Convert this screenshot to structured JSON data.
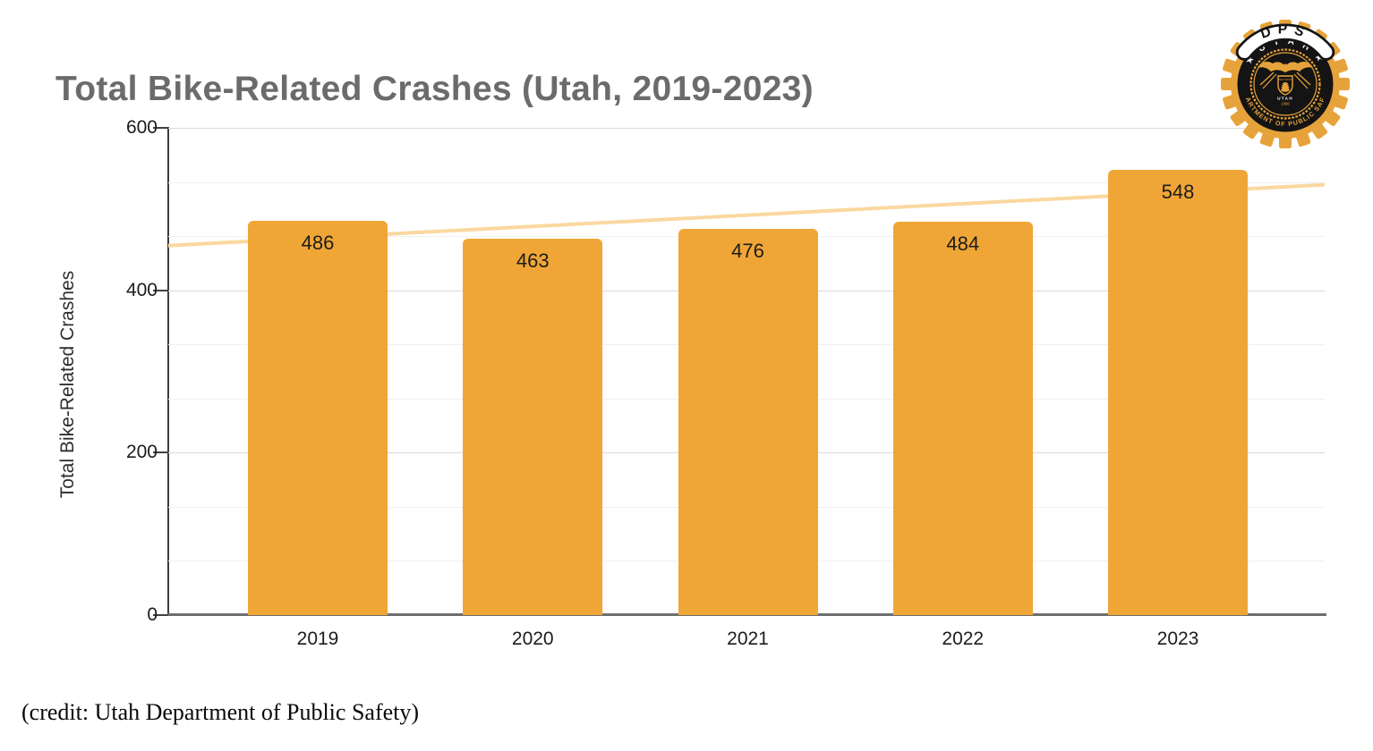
{
  "title": "Total Bike-Related Crashes (Utah, 2019-2023)",
  "credit": "(credit: Utah Department of Public Safety)",
  "logo": {
    "banner": "DPS",
    "arc_top": "★ U T A H ★",
    "ring_bottom": "DEPARTMENT OF PUBLIC SAFETY",
    "seal_motto": "INDUSTRY",
    "seal_state": "UTAH",
    "seal_year": "1896"
  },
  "chart_data": {
    "type": "bar",
    "title": "Total Bike-Related Crashes (Utah, 2019-2023)",
    "categories": [
      "2019",
      "2020",
      "2021",
      "2022",
      "2023"
    ],
    "values": [
      486,
      463,
      476,
      484,
      548
    ],
    "data_labels": [
      "486",
      "463",
      "476",
      "484",
      "548"
    ],
    "xlabel": "",
    "ylabel": "Total Bike-Related Crashes",
    "ylim": [
      0,
      600
    ],
    "yticks": [
      0,
      200,
      400,
      600
    ],
    "minor_grid_step": 66.67,
    "grid": true,
    "legend": "none",
    "bar_color": "#F0A636",
    "axis_color": "#3d3d3d",
    "trendline": {
      "type": "linear",
      "color": "#FAD8A0",
      "start_value": 455,
      "end_value": 530
    }
  }
}
